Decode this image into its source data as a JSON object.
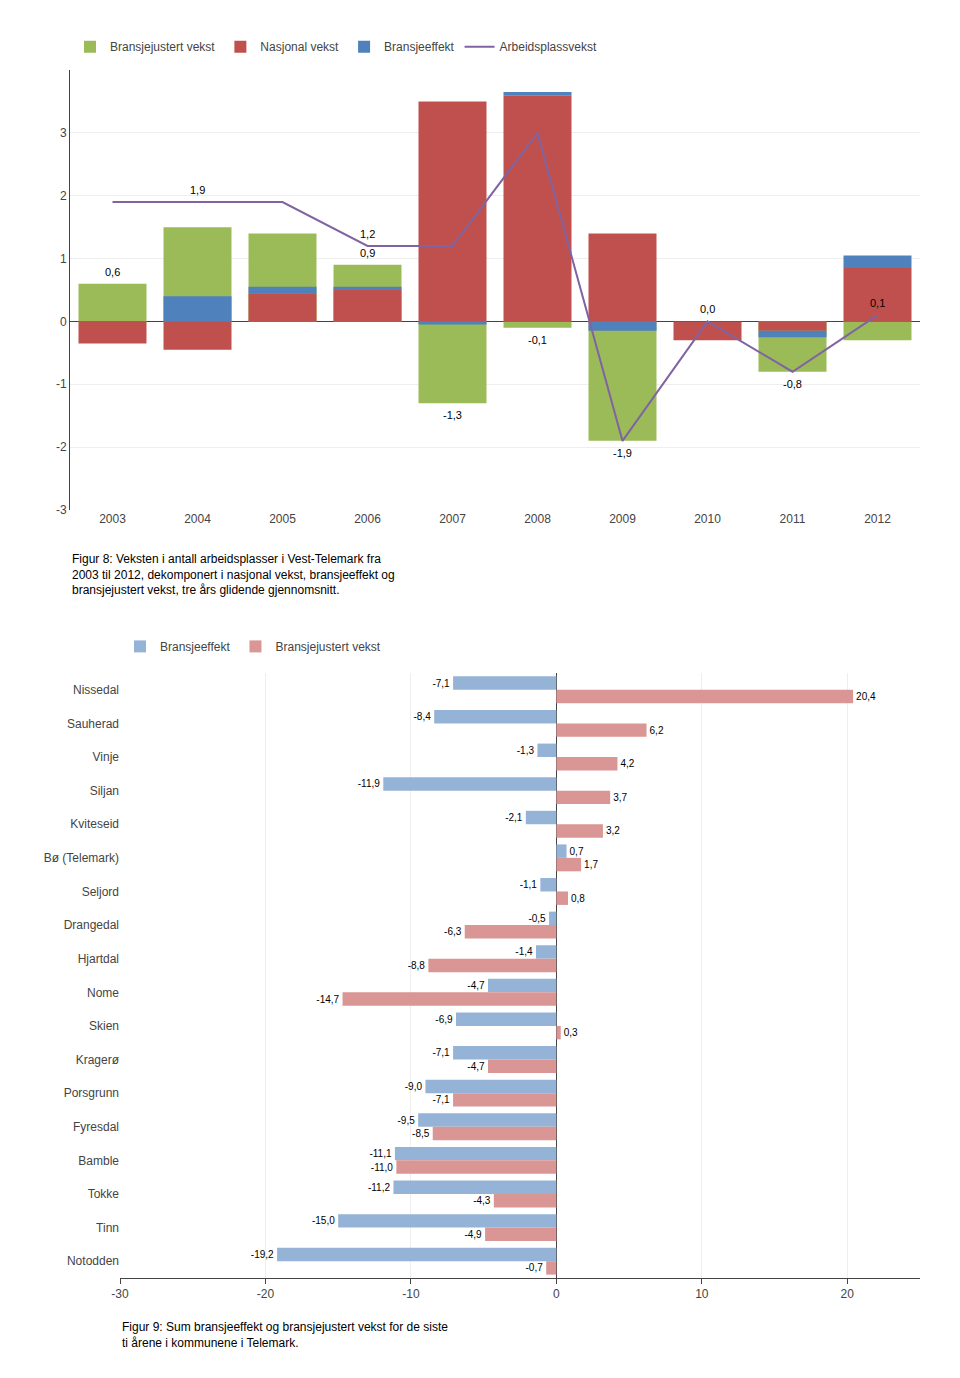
{
  "chart_data": [
    {
      "type": "bar",
      "caption": "Figur 8: Veksten i antall arbeidsplasser i Vest-Telemark fra\n2003 til 2012, dekomponert i nasjonal vekst, bransjeeffekt og\nbransjejustert vekst, tre års glidende gjennomsnitt.",
      "categories": [
        "2003",
        "2004",
        "2005",
        "2006",
        "2007",
        "2008",
        "2009",
        "2010",
        "2011",
        "2012"
      ],
      "stacked": true,
      "data_labels": true,
      "grid": true,
      "legend": "top",
      "ylim": [
        -3,
        4
      ],
      "yticks": [
        -3,
        -2,
        -1,
        0,
        1,
        2,
        3
      ],
      "series": [
        {
          "name": "Bransjejustert vekst",
          "type": "bar",
          "stacked": false,
          "color": "#9BBB59",
          "values": [
            0.6,
            1.5,
            1.4,
            0.9,
            -1.3,
            -0.1,
            -1.9,
            0.0,
            -0.8,
            -0.3
          ],
          "value_labels": [
            "0,6",
            null,
            null,
            "0,9",
            "-1,3",
            "-0,1",
            "-1,9",
            "0,0",
            "-0,8",
            null
          ]
        },
        {
          "name": "Nasjonal vekst",
          "type": "bar",
          "color": "#C0504D",
          "values": [
            -0.35,
            -0.45,
            0.45,
            0.5,
            3.5,
            3.6,
            1.4,
            -0.3,
            -0.15,
            0.85
          ]
        },
        {
          "name": "Bransjeeffekt",
          "type": "bar",
          "color": "#4F81BD",
          "values": [
            0.0,
            0.4,
            0.1,
            0.05,
            -0.05,
            0.05,
            -0.15,
            0.0,
            -0.1,
            0.2
          ]
        },
        {
          "name": "Arbeidsplassvekst",
          "type": "line",
          "color": "#8064A2",
          "values": [
            1.9,
            1.9,
            1.9,
            1.2,
            1.2,
            3.0,
            -1.9,
            0.0,
            -0.8,
            0.1
          ],
          "value_labels": [
            null,
            "1,9",
            null,
            "1,2",
            null,
            null,
            null,
            null,
            null,
            "0,1"
          ]
        }
      ]
    },
    {
      "type": "bar",
      "orientation": "horizontal",
      "caption": "Figur 9: Sum bransjeeffekt og bransjejustert vekst for de siste\nti årene i kommunene i Telemark.",
      "categories": [
        "Nissedal",
        "Sauherad",
        "Vinje",
        "Siljan",
        "Kviteseid",
        "Bø (Telemark)",
        "Seljord",
        "Drangedal",
        "Hjartdal",
        "Nome",
        "Skien",
        "Kragerø",
        "Porsgrunn",
        "Fyresdal",
        "Bamble",
        "Tokke",
        "Tinn",
        "Notodden"
      ],
      "data_labels": true,
      "grid": true,
      "legend": "top",
      "xlim": [
        -30,
        25
      ],
      "xticks": [
        -30,
        -20,
        -10,
        0,
        10,
        20
      ],
      "series": [
        {
          "name": "Bransjeeffekt",
          "color": "#95B3D7",
          "values": [
            -7.1,
            -8.4,
            -1.3,
            -11.9,
            -2.1,
            0.7,
            -1.1,
            -0.5,
            -1.4,
            -4.7,
            -6.9,
            -7.1,
            -9.0,
            -9.5,
            -11.1,
            -11.2,
            -15.0,
            -19.2
          ],
          "value_labels": [
            "-7,1",
            "-8,4",
            "-1,3",
            "-11,9",
            "-2,1",
            "0,7",
            "-1,1",
            "-0,5",
            "-1,4",
            "-4,7",
            "-6,9",
            "-7,1",
            "-9,0",
            "-9,5",
            "-11,1",
            "-11,2",
            "-15,0",
            "-19,2"
          ]
        },
        {
          "name": "Bransjejustert vekst",
          "color": "#DA9694",
          "values": [
            20.4,
            6.2,
            4.2,
            3.7,
            3.2,
            1.7,
            0.8,
            -6.3,
            -8.8,
            -14.7,
            0.3,
            -4.7,
            -7.1,
            -8.5,
            -11.0,
            -4.3,
            -4.9,
            -0.7
          ],
          "value_labels": [
            "20,4",
            "6,2",
            "4,2",
            "3,7",
            "3,2",
            "1,7",
            "0,8",
            "-6,3",
            "-8,8",
            "-14,7",
            "0,3",
            "-4,7",
            "-7,1",
            "-8,5",
            "-11,0",
            "-4,3",
            "-4,9",
            "-0,7"
          ]
        }
      ]
    }
  ]
}
